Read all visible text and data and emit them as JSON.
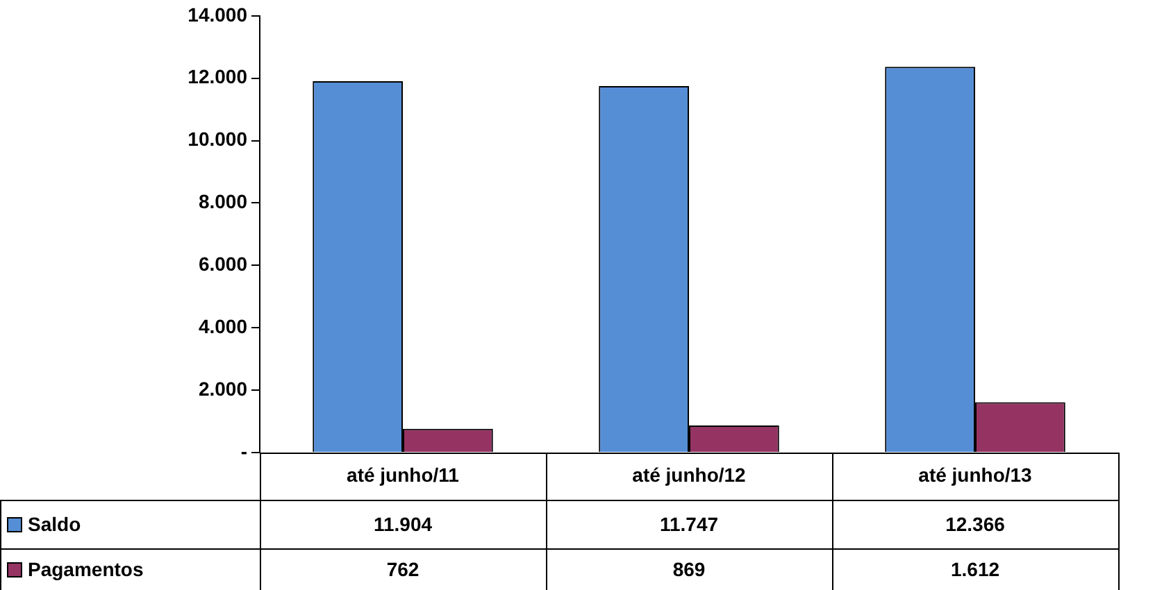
{
  "chart_data": {
    "type": "bar",
    "categories": [
      "até junho/11",
      "até junho/12",
      "até junho/13"
    ],
    "series": [
      {
        "name": "Saldo",
        "color": "#558ed5",
        "values": [
          11904,
          11747,
          12366
        ],
        "value_labels": [
          "11.904",
          "11.747",
          "12.366"
        ]
      },
      {
        "name": "Pagamentos",
        "color": "#953462",
        "values": [
          762,
          869,
          1612
        ],
        "value_labels": [
          "762",
          "869",
          "1.612"
        ]
      }
    ],
    "ylim": [
      0,
      14000
    ],
    "yticks": [
      {
        "value": 0,
        "label": "-"
      },
      {
        "value": 2000,
        "label": "2.000"
      },
      {
        "value": 4000,
        "label": "4.000"
      },
      {
        "value": 6000,
        "label": "6.000"
      },
      {
        "value": 8000,
        "label": "8.000"
      },
      {
        "value": 10000,
        "label": "10.000"
      },
      {
        "value": 12000,
        "label": "12.000"
      },
      {
        "value": 14000,
        "label": "14.000"
      }
    ],
    "grid": false,
    "legend": "bottom"
  }
}
